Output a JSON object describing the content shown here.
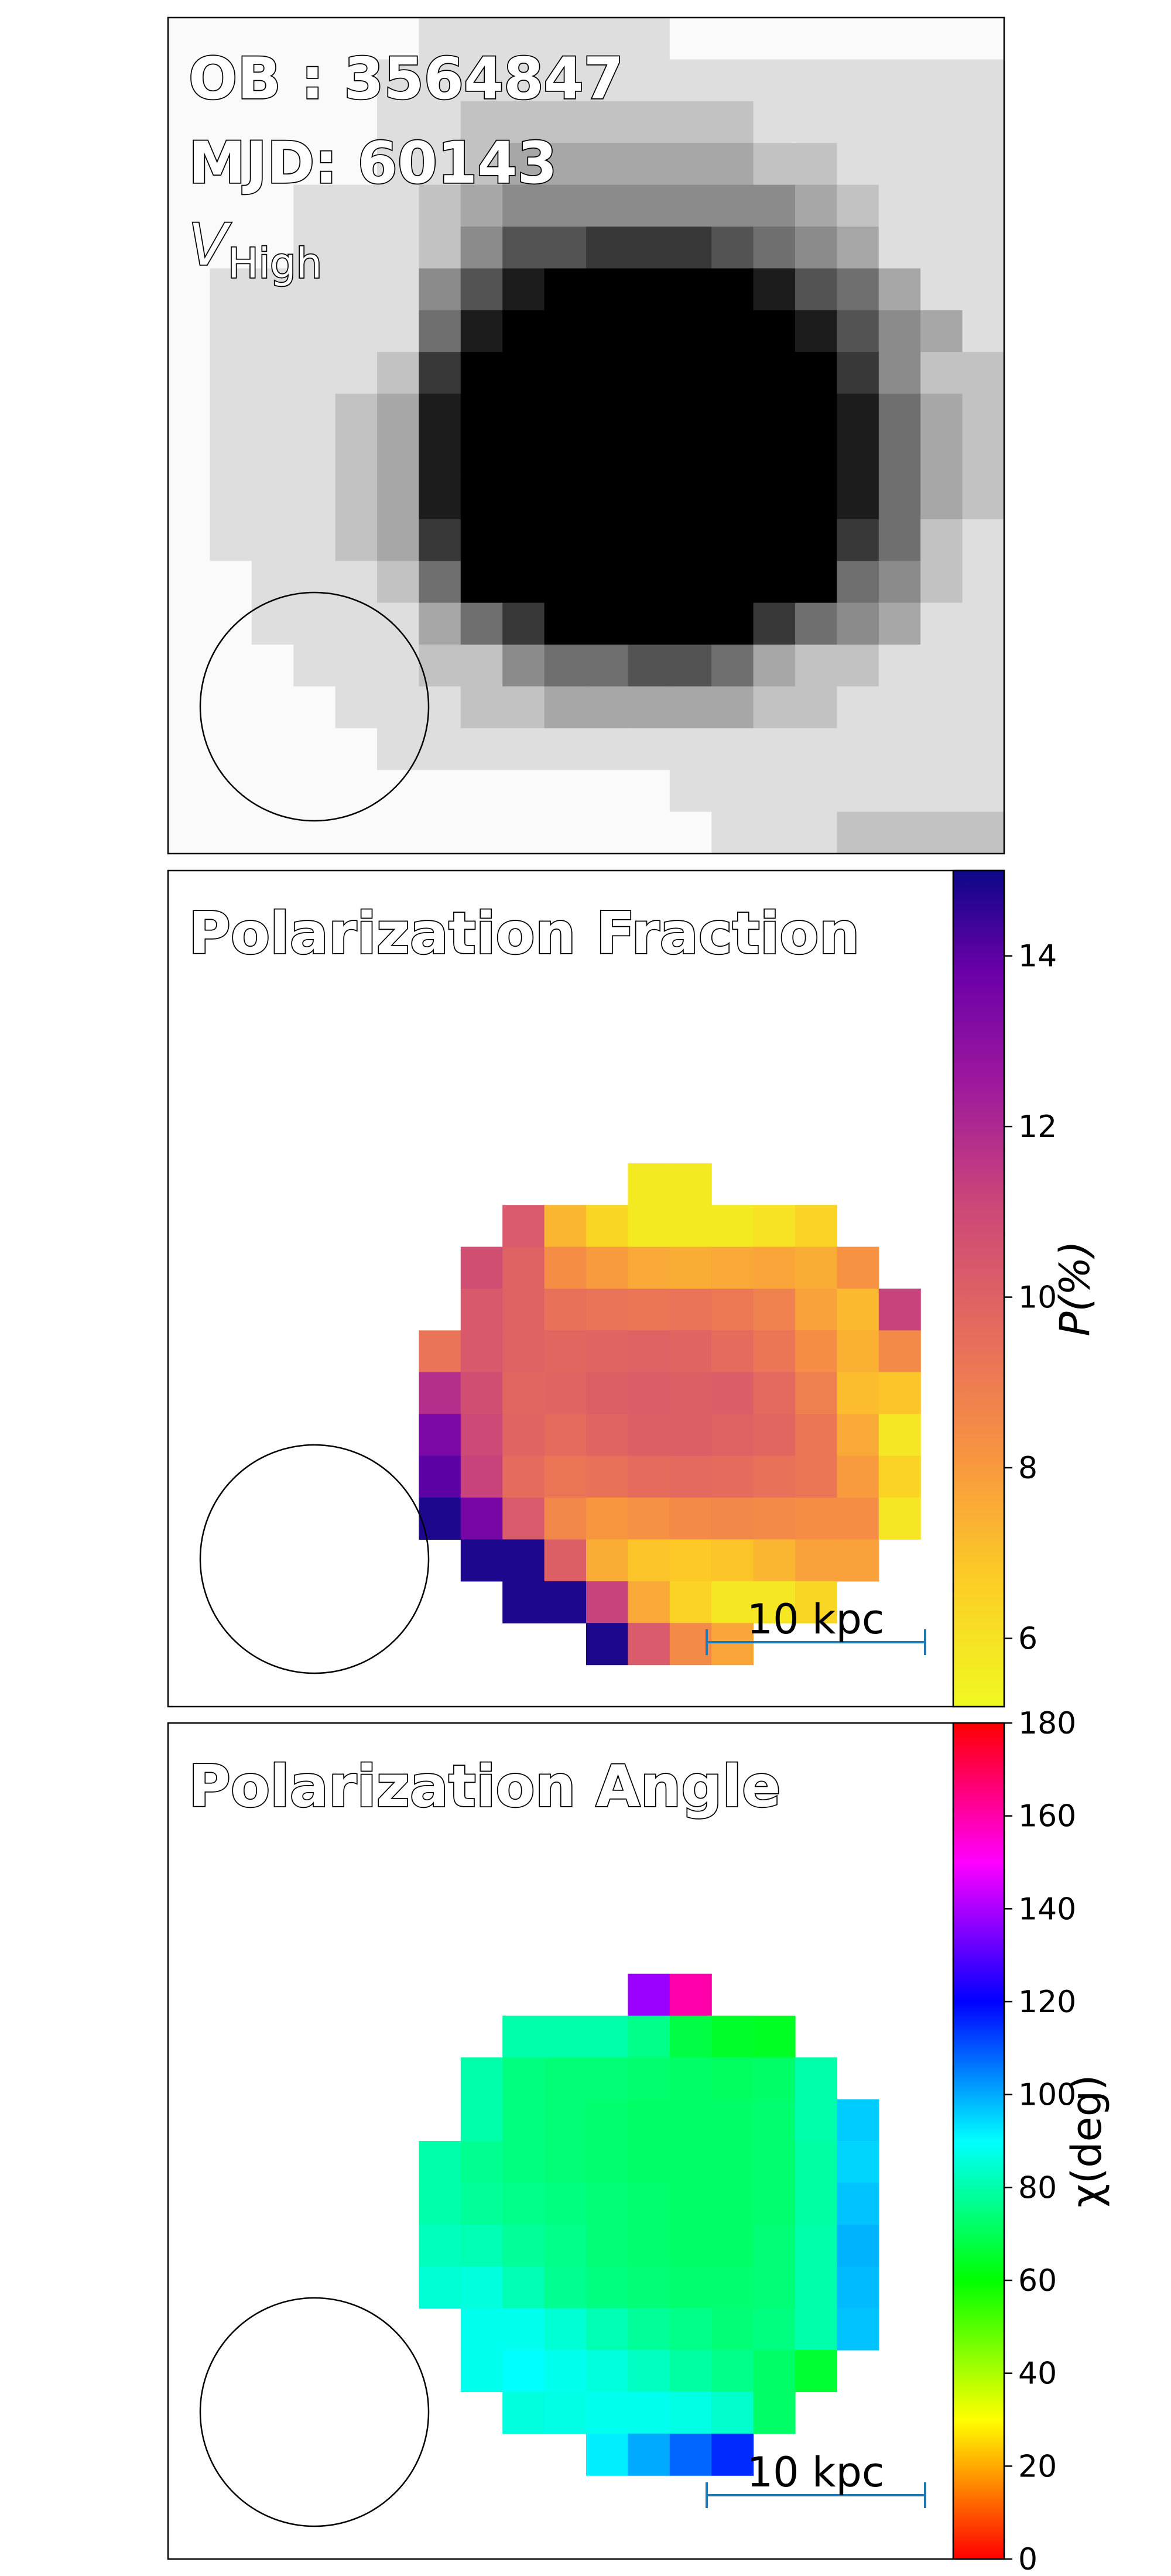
{
  "chart_data": [
    {
      "type": "heatmap",
      "panel": "intensity",
      "annotations": {
        "ob": "OB : 3564847",
        "mjd": "MJD: 60143",
        "band_main": "V",
        "band_sub": "High"
      },
      "colormap": "gray_r",
      "grid_size": [
        20,
        20
      ],
      "rows": [
        "00000011111100000000",
        "00000111111111111111",
        "00000112222222111111",
        "00000112333333221111",
        "00011123444444432111",
        "00011124667776543111",
        "01111146899999865311",
        "01111158999999986431",
        "01111279999999997422",
        "01112389999999998532",
        "01112389999999998532",
        "01112389999999998532",
        "01112379999999997521",
        "00111259999999995421",
        "00111135799999754311",
        "00011122455665322111",
        "00001112233333221111",
        "00000111111111111111",
        "00000000000011111111",
        "00000000000001112222"
      ],
      "beam": "circle"
    },
    {
      "type": "heatmap",
      "panel": "polarization-fraction",
      "title": "Polarization Fraction",
      "colorbar": {
        "label": "P(%)",
        "range": [
          5.2,
          15
        ],
        "ticks": [
          6,
          8,
          10,
          12,
          14
        ],
        "colormap": "plasma_r"
      },
      "units": "%",
      "grid_origin": [
        6,
        7
      ],
      "rows": [
        [
          null,
          null,
          null,
          null,
          null,
          5.7,
          5.7,
          null,
          null,
          null,
          null,
          null
        ],
        [
          null,
          null,
          10.3,
          7.3,
          6.4,
          5.7,
          5.7,
          5.7,
          6.0,
          6.5,
          null,
          null
        ],
        [
          null,
          10.8,
          10.0,
          8.4,
          8.0,
          7.6,
          7.5,
          7.6,
          7.7,
          7.5,
          8.2,
          null
        ],
        [
          null,
          10.4,
          10.0,
          9.4,
          9.3,
          9.2,
          9.3,
          9.1,
          8.8,
          7.8,
          7.2,
          11.2
        ],
        [
          9.3,
          10.4,
          10.0,
          9.8,
          9.9,
          10.0,
          9.9,
          9.6,
          9.2,
          8.4,
          7.4,
          8.5
        ],
        [
          11.8,
          10.8,
          9.8,
          9.9,
          10.1,
          10.2,
          10.1,
          10.2,
          9.7,
          8.9,
          7.1,
          6.9
        ],
        [
          13.4,
          11.0,
          9.9,
          9.6,
          9.9,
          10.1,
          10.1,
          10.0,
          9.8,
          9.2,
          7.6,
          5.8
        ],
        [
          14.0,
          11.2,
          9.6,
          9.2,
          9.4,
          9.6,
          9.7,
          9.6,
          9.4,
          9.2,
          8.0,
          6.5
        ],
        [
          14.8,
          13.5,
          10.3,
          8.6,
          8.1,
          8.3,
          8.5,
          8.6,
          8.5,
          8.4,
          8.4,
          5.8
        ],
        [
          null,
          14.8,
          14.8,
          10.1,
          7.5,
          6.9,
          6.8,
          6.9,
          7.3,
          7.8,
          7.8,
          null
        ],
        [
          null,
          null,
          14.8,
          14.8,
          11.2,
          7.6,
          6.5,
          5.8,
          5.8,
          6.4,
          null,
          null
        ],
        [
          null,
          null,
          null,
          null,
          14.8,
          10.3,
          8.5,
          7.7,
          null,
          null,
          null,
          null
        ]
      ],
      "scale_bar": "10 kpc",
      "beam": "circle"
    },
    {
      "type": "heatmap",
      "panel": "polarization-angle",
      "title": "Polarization Angle",
      "colorbar": {
        "label": "χ(deg)",
        "range": [
          0,
          180
        ],
        "ticks": [
          0,
          20,
          40,
          60,
          80,
          100,
          120,
          140,
          160,
          180
        ],
        "colormap": "hsv"
      },
      "units": "deg",
      "grid_origin": [
        6,
        6
      ],
      "rows": [
        [
          null,
          null,
          null,
          null,
          null,
          138,
          160,
          null,
          null,
          null,
          null,
          null
        ],
        [
          null,
          null,
          80,
          80,
          80,
          76,
          68,
          65,
          64,
          null,
          null,
          null
        ],
        [
          null,
          80,
          75,
          74,
          74,
          73,
          72,
          71,
          72,
          80,
          null,
          null
        ],
        [
          null,
          80,
          75,
          74,
          73,
          72,
          72,
          72,
          73,
          80,
          96,
          null
        ],
        [
          80,
          77,
          75,
          74,
          73,
          72,
          72,
          72,
          73,
          79,
          95,
          null
        ],
        [
          80,
          78,
          76,
          75,
          74,
          73,
          72,
          72,
          73,
          79,
          97,
          null
        ],
        [
          82,
          81,
          78,
          76,
          74,
          73,
          72,
          72,
          74,
          80,
          99,
          null
        ],
        [
          85,
          86,
          81,
          77,
          75,
          74,
          73,
          73,
          74,
          80,
          98,
          null
        ],
        [
          null,
          88,
          88,
          85,
          81,
          78,
          76,
          74,
          75,
          80,
          97,
          null
        ],
        [
          null,
          88,
          90,
          88,
          86,
          83,
          79,
          76,
          72,
          66,
          null,
          null
        ],
        [
          null,
          null,
          86,
          87,
          88,
          88,
          87,
          84,
          72,
          null,
          null,
          null
        ],
        [
          null,
          null,
          null,
          null,
          92,
          100,
          108,
          115,
          null,
          null,
          null,
          null
        ]
      ],
      "scale_bar": "10 kpc",
      "beam": "circle"
    }
  ]
}
